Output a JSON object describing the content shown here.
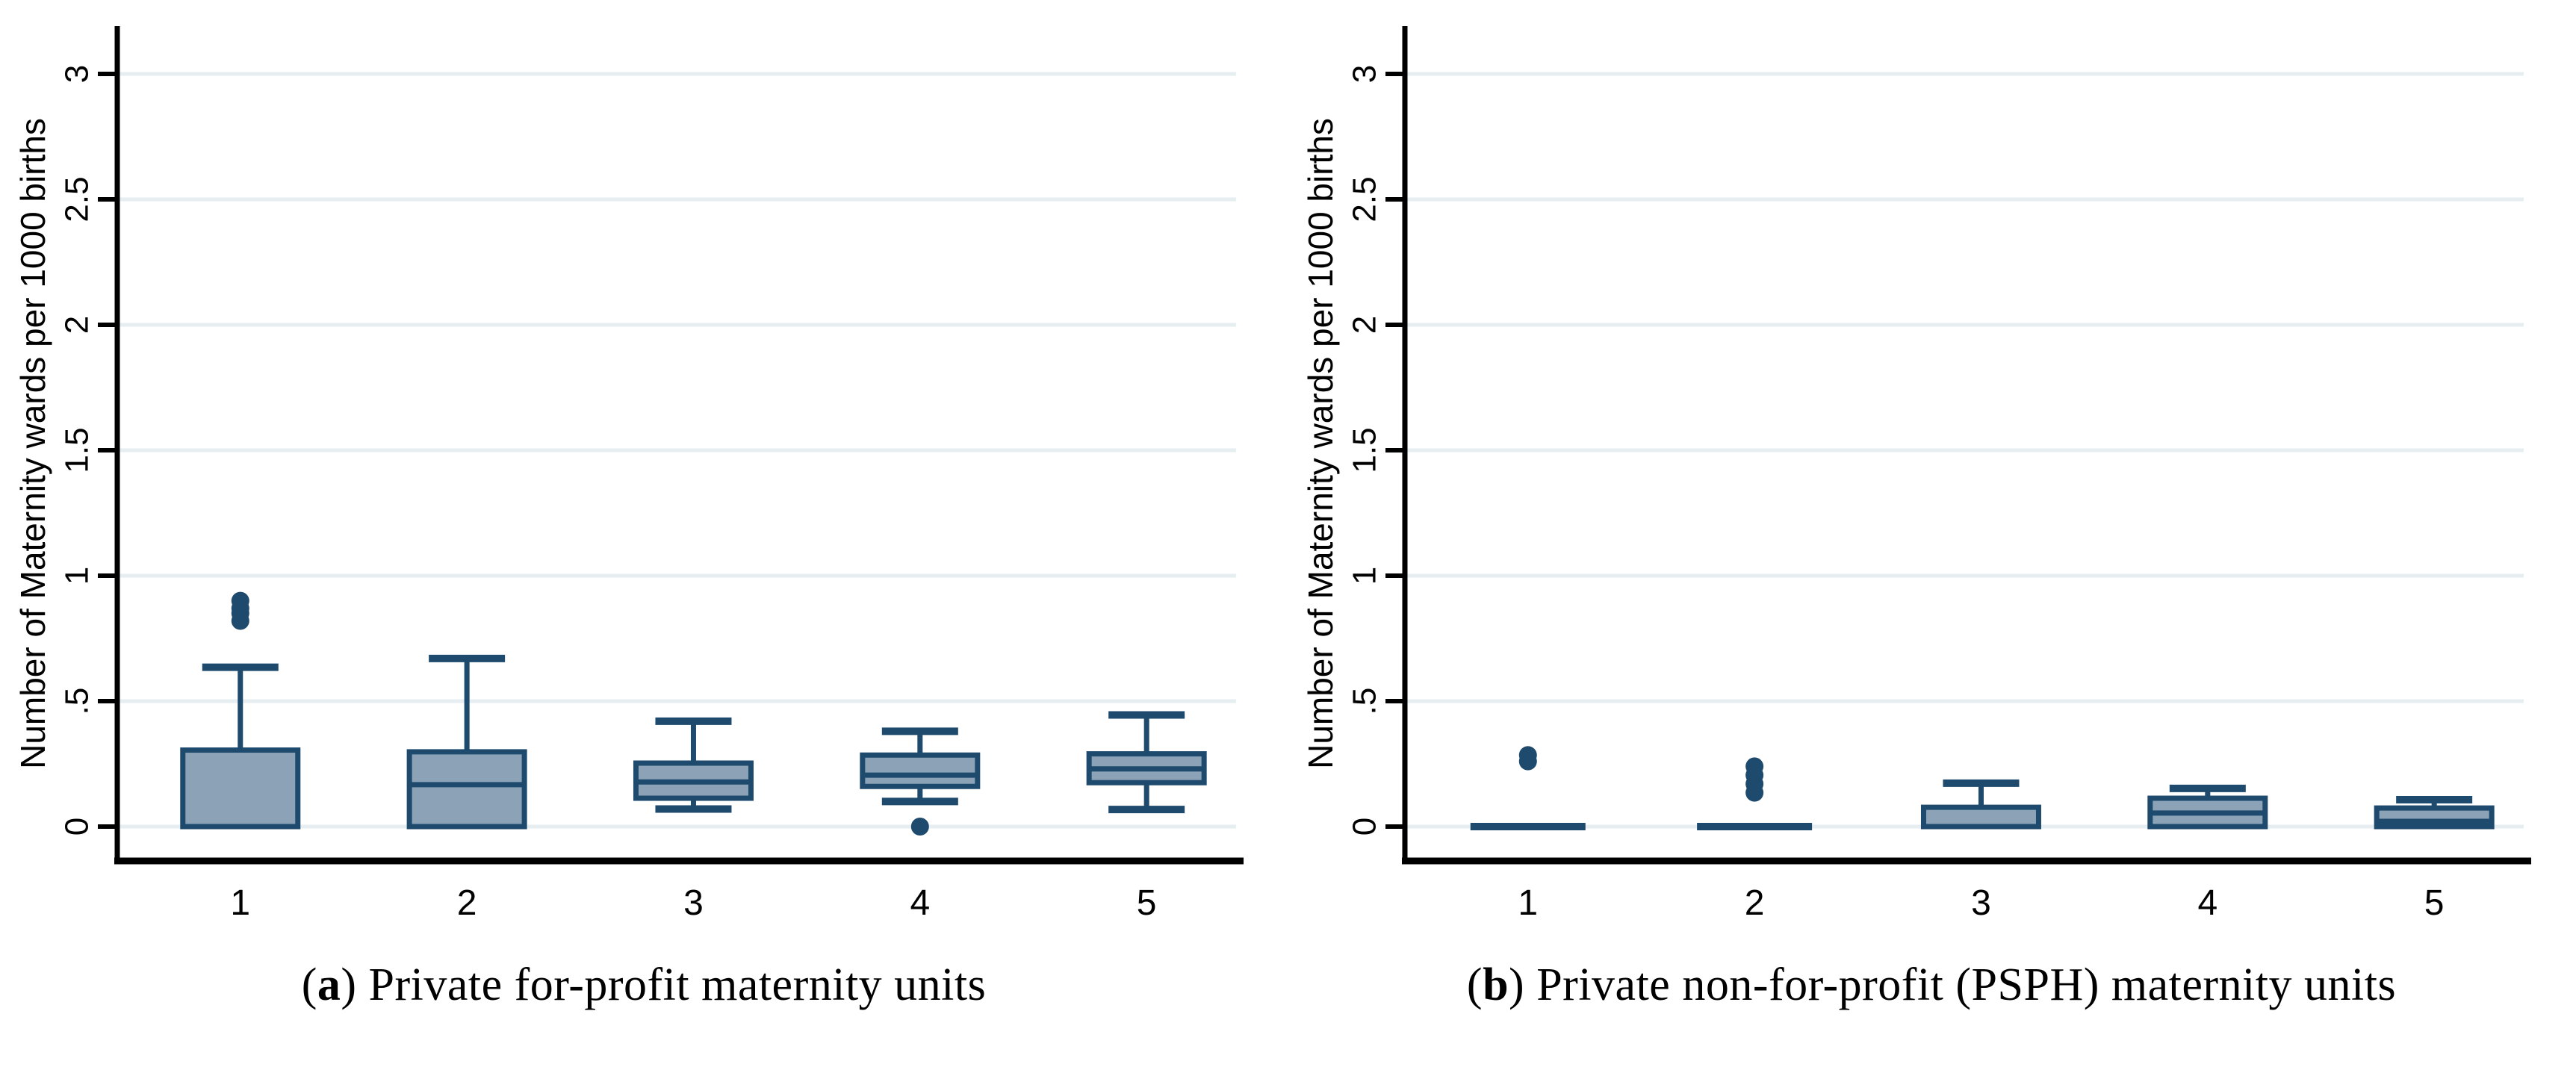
{
  "style": {
    "background": "#ffffff",
    "box_fill": "#8ca3b7",
    "box_stroke": "#1e4a6d",
    "grid_color": "#e7eef2",
    "axis_color": "#000000",
    "text_color": "#000000"
  },
  "chart_data": [
    {
      "type": "box",
      "panel": "a",
      "caption": {
        "open": "(",
        "letter": "a",
        "close": ")",
        "text": "Private for-profit maternity units"
      },
      "ylabel": "Number of Maternity wards per 1000 births",
      "xlabel": "",
      "ylim": [
        0,
        3
      ],
      "grid": true,
      "yticks": [
        0,
        0.5,
        1,
        1.5,
        2,
        2.5,
        3
      ],
      "ytick_labels": [
        "0",
        ".5",
        "1",
        "1.5",
        "2",
        "2.5",
        "3"
      ],
      "categories": [
        "1",
        "2",
        "3",
        "4",
        "5"
      ],
      "boxes": [
        {
          "category": "1",
          "whisker_low": 0,
          "q1": 0,
          "median": 0,
          "q3": 0.305,
          "whisker_high": 0.635,
          "outliers": [
            0.82,
            0.85,
            0.87,
            0.9
          ]
        },
        {
          "category": "2",
          "whisker_low": 0,
          "q1": 0,
          "median": 0.167,
          "q3": 0.298,
          "whisker_high": 0.67,
          "outliers": []
        },
        {
          "category": "3",
          "whisker_low": 0.07,
          "q1": 0.113,
          "median": 0.178,
          "q3": 0.253,
          "whisker_high": 0.42,
          "outliers": []
        },
        {
          "category": "4",
          "whisker_low": 0.1,
          "q1": 0.16,
          "median": 0.205,
          "q3": 0.285,
          "whisker_high": 0.38,
          "outliers": [
            0
          ]
        },
        {
          "category": "5",
          "whisker_low": 0.068,
          "q1": 0.175,
          "median": 0.23,
          "q3": 0.29,
          "whisker_high": 0.445,
          "outliers": []
        }
      ]
    },
    {
      "type": "box",
      "panel": "b",
      "caption": {
        "open": "(",
        "letter": "b",
        "close": ")",
        "text": "Private non-for-profit (PSPH) maternity units"
      },
      "ylabel": "Number of Maternity wards per 1000 births",
      "xlabel": "",
      "ylim": [
        0,
        3
      ],
      "grid": true,
      "yticks": [
        0,
        0.5,
        1,
        1.5,
        2,
        2.5,
        3
      ],
      "ytick_labels": [
        "0",
        ".5",
        "1",
        "1.5",
        "2",
        "2.5",
        "3"
      ],
      "categories": [
        "1",
        "2",
        "3",
        "4",
        "5"
      ],
      "boxes": [
        {
          "category": "1",
          "whisker_low": 0,
          "q1": 0,
          "median": 0,
          "q3": 0,
          "whisker_high": 0,
          "outliers": [
            0.26,
            0.285
          ]
        },
        {
          "category": "2",
          "whisker_low": 0,
          "q1": 0,
          "median": 0,
          "q3": 0,
          "whisker_high": 0,
          "outliers": [
            0.135,
            0.17,
            0.205,
            0.24
          ]
        },
        {
          "category": "3",
          "whisker_low": 0,
          "q1": 0,
          "median": 0,
          "q3": 0.077,
          "whisker_high": 0.173,
          "outliers": []
        },
        {
          "category": "4",
          "whisker_low": 0,
          "q1": 0,
          "median": 0.054,
          "q3": 0.113,
          "whisker_high": 0.152,
          "outliers": []
        },
        {
          "category": "5",
          "whisker_low": 0,
          "q1": 0,
          "median": 0.021,
          "q3": 0.074,
          "whisker_high": 0.107,
          "outliers": []
        }
      ]
    }
  ]
}
